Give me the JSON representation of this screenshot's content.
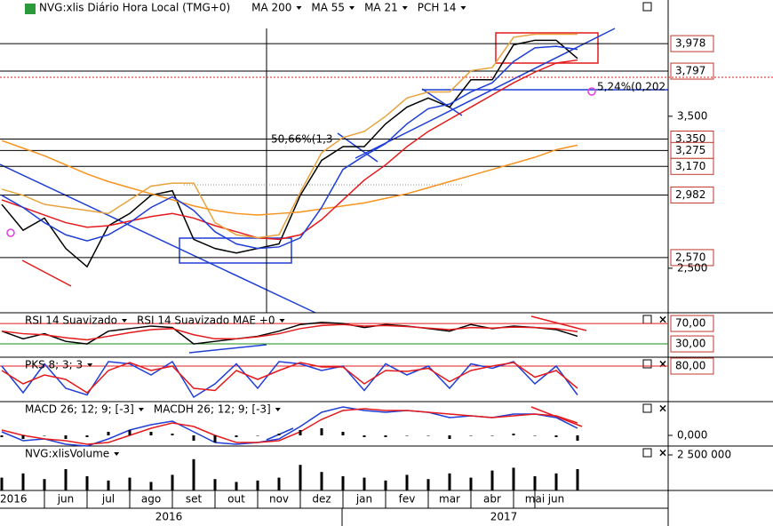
{
  "chart_data": [
    {
      "type": "line",
      "title": "NVG:xlis Diário Hora Local (TMG+0)",
      "categories": [
        "2016",
        null,
        null,
        "jun",
        null,
        "jul",
        null,
        "ago",
        null,
        "set",
        null,
        "out",
        null,
        "nov",
        null,
        "dez",
        null,
        "jan",
        null,
        "fev",
        null,
        "mar",
        null,
        "abr",
        null,
        "mai",
        "jun",
        null
      ],
      "year_labels": [
        "2016",
        "2017"
      ],
      "ylim": [
        2.207,
        4.265
      ],
      "yticks": [
        {
          "value": 3.5,
          "label": "3,500"
        },
        {
          "value": 2.5,
          "label": "2,500"
        }
      ],
      "levels": [
        {
          "value": 3.978,
          "label": "3,978"
        },
        {
          "value": 3.797,
          "label": "3,797"
        },
        {
          "value": 3.35,
          "label": "3,350"
        },
        {
          "value": 3.275,
          "label": "3,275"
        },
        {
          "value": 3.17,
          "label": "3,170"
        },
        {
          "value": 2.982,
          "label": "2,982"
        },
        {
          "value": 2.57,
          "label": "2,570"
        }
      ],
      "alert_level": 3.756,
      "annotations": [
        "50,66%(1,3",
        "5,24%(0,202"
      ],
      "series": [
        {
          "color": "#000000",
          "values": [
            2.92,
            2.75,
            2.83,
            2.63,
            2.51,
            2.78,
            2.86,
            2.98,
            3.01,
            2.69,
            2.63,
            2.6,
            2.63,
            2.66,
            2.98,
            3.21,
            3.3,
            3.3,
            3.45,
            3.56,
            3.62,
            3.56,
            3.74,
            3.74,
            3.97,
            4.0,
            4.0,
            3.88
          ]
        },
        {
          "name": "MA 200",
          "color": "#f7931e",
          "values": [
            3.34,
            3.29,
            3.24,
            3.18,
            3.12,
            3.07,
            3.03,
            2.99,
            2.95,
            2.91,
            2.88,
            2.86,
            2.85,
            2.86,
            2.87,
            2.89,
            2.91,
            2.93,
            2.96,
            2.99,
            3.03,
            3.07,
            3.11,
            3.15,
            3.19,
            3.23,
            3.28,
            3.31
          ]
        },
        {
          "name": "MA 55",
          "color": "#e41a1c",
          "values": [
            2.95,
            2.9,
            2.85,
            2.8,
            2.77,
            2.78,
            2.81,
            2.84,
            2.86,
            2.83,
            2.78,
            2.74,
            2.7,
            2.69,
            2.72,
            2.82,
            2.95,
            3.08,
            3.18,
            3.3,
            3.4,
            3.48,
            3.56,
            3.64,
            3.72,
            3.79,
            3.85,
            3.87
          ]
        },
        {
          "name": "MA 21",
          "color": "#1f3fd6",
          "values": [
            2.98,
            2.9,
            2.8,
            2.72,
            2.68,
            2.72,
            2.8,
            2.9,
            2.97,
            2.88,
            2.74,
            2.66,
            2.63,
            2.64,
            2.7,
            2.9,
            3.15,
            3.24,
            3.32,
            3.45,
            3.55,
            3.58,
            3.66,
            3.72,
            3.86,
            3.95,
            3.96,
            3.94
          ]
        },
        {
          "name": "PCH 14",
          "color": "#e8a33c",
          "values": [
            3.02,
            2.98,
            2.92,
            2.9,
            2.88,
            2.86,
            2.95,
            3.04,
            3.06,
            3.06,
            2.8,
            2.72,
            2.7,
            2.72,
            3.0,
            3.26,
            3.36,
            3.4,
            3.5,
            3.62,
            3.66,
            3.66,
            3.8,
            3.82,
            4.02,
            4.04,
            4.04,
            4.04
          ]
        }
      ]
    },
    {
      "type": "line",
      "ylim": [
        4,
        91
      ],
      "levels": [
        {
          "value": 70,
          "label": "70,00",
          "color": "#e41a1c"
        },
        {
          "value": 30,
          "label": "30,00",
          "color": "#1a8a1a"
        }
      ],
      "series": [
        {
          "name": "RSI 14 Suavizado",
          "color": "#000000",
          "values": [
            55,
            40,
            50,
            35,
            30,
            55,
            60,
            65,
            62,
            30,
            35,
            40,
            45,
            55,
            68,
            72,
            70,
            62,
            68,
            65,
            60,
            55,
            68,
            60,
            65,
            62,
            58,
            45
          ]
        },
        {
          "name": "RSI 14 Suavizado MAE +0",
          "color": "#e41a1c",
          "values": [
            55,
            50,
            48,
            42,
            38,
            45,
            52,
            58,
            60,
            48,
            40,
            40,
            44,
            50,
            60,
            66,
            68,
            65,
            66,
            64,
            61,
            58,
            62,
            61,
            63,
            62,
            60,
            54
          ]
        }
      ]
    },
    {
      "type": "line",
      "ylim": [
        0,
        100
      ],
      "levels": [
        {
          "value": 80,
          "label": "80,00",
          "color": "#e41a1c"
        }
      ],
      "series": [
        {
          "name": "PKS 8; 3; 3",
          "color": "#1f3fd6",
          "values": [
            80,
            20,
            85,
            30,
            15,
            90,
            85,
            60,
            90,
            10,
            40,
            85,
            30,
            90,
            85,
            70,
            80,
            25,
            85,
            60,
            80,
            30,
            85,
            75,
            90,
            40,
            80,
            15
          ]
        },
        {
          "color": "#e41a1c",
          "values": [
            70,
            40,
            60,
            50,
            20,
            70,
            88,
            70,
            80,
            30,
            25,
            70,
            50,
            70,
            88,
            78,
            78,
            40,
            70,
            68,
            75,
            45,
            70,
            80,
            88,
            55,
            70,
            30
          ]
        }
      ]
    },
    {
      "type": "line",
      "ylim": [
        -0.06,
        0.19
      ],
      "yticks": [
        {
          "value": 0,
          "label": "0,000"
        }
      ],
      "series": [
        {
          "name": "MACD 26; 12; 9; [-3]",
          "color": "#1f3fd6",
          "values": [
            0.02,
            -0.03,
            -0.02,
            -0.05,
            -0.06,
            -0.02,
            0.03,
            0.06,
            0.08,
            0.02,
            -0.04,
            -0.05,
            -0.04,
            -0.02,
            0.05,
            0.13,
            0.16,
            0.14,
            0.13,
            0.14,
            0.13,
            0.1,
            0.11,
            0.1,
            0.12,
            0.12,
            0.1,
            0.04
          ]
        },
        {
          "color": "#e41a1c",
          "values": [
            0.03,
            0.0,
            -0.02,
            -0.03,
            -0.05,
            -0.04,
            0.0,
            0.04,
            0.07,
            0.05,
            0.0,
            -0.04,
            -0.04,
            -0.03,
            0.02,
            0.09,
            0.14,
            0.15,
            0.14,
            0.14,
            0.13,
            0.12,
            0.11,
            0.1,
            0.11,
            0.12,
            0.11,
            0.07
          ]
        },
        {
          "name": "MACDH 26; 12; 9; [-3]",
          "color": "#000000",
          "type": "bar",
          "values": [
            -0.01,
            -0.02,
            0,
            -0.02,
            -0.01,
            0.02,
            0.03,
            0.02,
            0.01,
            -0.03,
            -0.04,
            -0.01,
            0,
            0.01,
            0.03,
            0.04,
            0.02,
            -0.01,
            -0.01,
            0,
            0,
            -0.02,
            0,
            0,
            0.01,
            0,
            -0.01,
            -0.03
          ]
        }
      ]
    },
    {
      "type": "bar",
      "ylim": [
        0,
        3125000
      ],
      "yticks": [
        {
          "value": 2500000,
          "label": "2 500 000"
        }
      ],
      "series": [
        {
          "name": "NVG:xlisVolume",
          "color": "#000000",
          "values": [
            900000,
            1200000,
            800000,
            1500000,
            1000000,
            700000,
            900000,
            600000,
            1100000,
            2200000,
            800000,
            600000,
            700000,
            900000,
            1800000,
            1300000,
            1000000,
            900000,
            700000,
            1100000,
            800000,
            1200000,
            900000,
            1400000,
            1600000,
            1000000,
            1200000,
            1500000
          ]
        }
      ]
    }
  ]
}
